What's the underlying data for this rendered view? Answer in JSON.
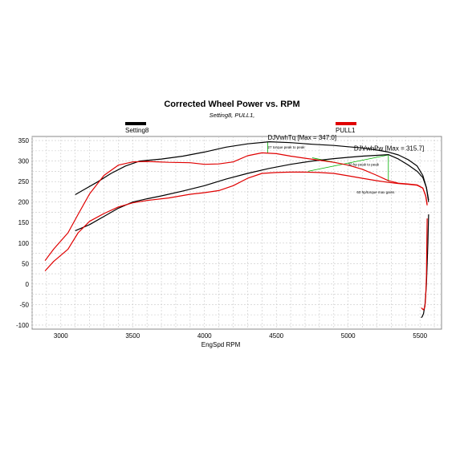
{
  "chart_data": {
    "type": "line",
    "title": "Corrected Wheel Power vs. RPM",
    "subtitle": "Setting8, PULL1,",
    "xlabel": "EngSpd RPM",
    "ylabel": "",
    "xlim": [
      2800,
      5650
    ],
    "ylim": [
      -110,
      360
    ],
    "x_ticks": [
      3000,
      3500,
      4000,
      4500,
      5000,
      5500
    ],
    "y_ticks": [
      350,
      300,
      250,
      200,
      150,
      100,
      50,
      0,
      -50,
      -100
    ],
    "grid": true,
    "legend": [
      {
        "label": "Setting8",
        "color": "#000000"
      },
      {
        "label": "PULL1",
        "color": "#e00000"
      }
    ],
    "series": [
      {
        "name": "Setting8",
        "color": "#000000",
        "curves": [
          {
            "x": [
              3100,
              3150,
              3250,
              3350,
              3450,
              3550,
              3700,
              3850,
              4000,
              4150,
              4300,
              4450,
              4600,
              4750,
              4900,
              5000,
              5100,
              5200,
              5280,
              5350,
              5420,
              5480,
              5520,
              5545,
              5560
            ],
            "y": [
              218,
              228,
              248,
              270,
              288,
              300,
              305,
              312,
              322,
              334,
              342,
              347,
              345,
              341,
              338,
              335,
              332,
              327,
              322,
              315,
              303,
              288,
              265,
              235,
              200
            ]
          },
          {
            "x": [
              3100,
              3200,
              3300,
              3400,
              3500,
              3600,
              3700,
              3850,
              4000,
              4150,
              4300,
              4450,
              4600,
              4750,
              4900,
              5000,
              5100,
              5200,
              5280,
              5350,
              5420,
              5480,
              5520,
              5545,
              5560
            ],
            "y": [
              130,
              145,
              165,
              185,
              200,
              208,
              215,
              227,
              240,
              256,
              270,
              282,
              292,
              300,
              306,
              309,
              312,
              314,
              315.7,
              305,
              290,
              275,
              260,
              235,
              205
            ]
          },
          {
            "x": [
              5560,
              5555,
              5545,
              5535,
              5525,
              5515,
              5508
            ],
            "y": [
              170,
              100,
              0,
              -50,
              -72,
              -80,
              -82
            ]
          }
        ]
      },
      {
        "name": "PULL1",
        "color": "#e00000",
        "curves": [
          {
            "x": [
              2890,
              2950,
              3050,
              3120,
              3200,
              3300,
              3400,
              3500,
              3600,
              3750,
              3900,
              4000,
              4100,
              4200,
              4300,
              4400,
              4500,
              4600,
              4700,
              4800,
              4900,
              5000,
              5100,
              5200,
              5280,
              5350,
              5420,
              5480,
              5520,
              5540,
              5550
            ],
            "y": [
              57,
              85,
              125,
              170,
              220,
              265,
              290,
              298,
              299,
              297,
              296,
              292,
              293,
              298,
              313,
              320,
              318,
              312,
              307,
              302,
              297,
              290,
              280,
              265,
              252,
              246,
              244,
              242,
              234,
              215,
              195
            ]
          },
          {
            "x": [
              2890,
              2950,
              3050,
              3120,
              3200,
              3300,
              3400,
              3500,
              3600,
              3750,
              3900,
              4000,
              4100,
              4200,
              4300,
              4400,
              4500,
              4600,
              4700,
              4800,
              4900,
              5000,
              5100,
              5200,
              5280,
              5350,
              5420,
              5480,
              5520,
              5540,
              5550
            ],
            "y": [
              32,
              55,
              85,
              125,
              153,
              172,
              188,
              198,
              204,
              210,
              219,
              223,
              228,
              240,
              258,
              270,
              272,
              273,
              273,
              272,
              270,
              264,
              258,
              252,
              248,
              245,
              243,
              241,
              234,
              215,
              192
            ]
          },
          {
            "x": [
              5550,
              5548,
              5545,
              5540,
              5535,
              5525,
              5515,
              5510
            ],
            "y": [
              160,
              100,
              20,
              -30,
              -55,
              -63,
              -60,
              -58
            ]
          }
        ]
      }
    ],
    "annotations": [
      {
        "text": "DJVwhTq [Max = 347.0]",
        "x": 4440,
        "y": 352
      },
      {
        "text": "DJVwhPw [Max = 315.7]",
        "x": 5040,
        "y": 326
      },
      {
        "text": "27 torque peak to peak",
        "x": 4440,
        "y": 331
      },
      {
        "text": "30 hp peak to peak",
        "x": 5000,
        "y": 289
      },
      {
        "text": "60 hp/torque max gains",
        "x": 5060,
        "y": 221
      }
    ],
    "guide_lines": [
      {
        "color": "#00b000",
        "x": [
          4440,
          4440
        ],
        "y": [
          347,
          320
        ]
      },
      {
        "color": "#00b000",
        "x": [
          4720,
          5280
        ],
        "y": [
          275,
          315
        ]
      },
      {
        "color": "#00b000",
        "x": [
          5280,
          5280
        ],
        "y": [
          315,
          250
        ]
      },
      {
        "color": "#00b000",
        "x": [
          4750,
          5000
        ],
        "y": [
          308,
          290
        ]
      }
    ]
  }
}
